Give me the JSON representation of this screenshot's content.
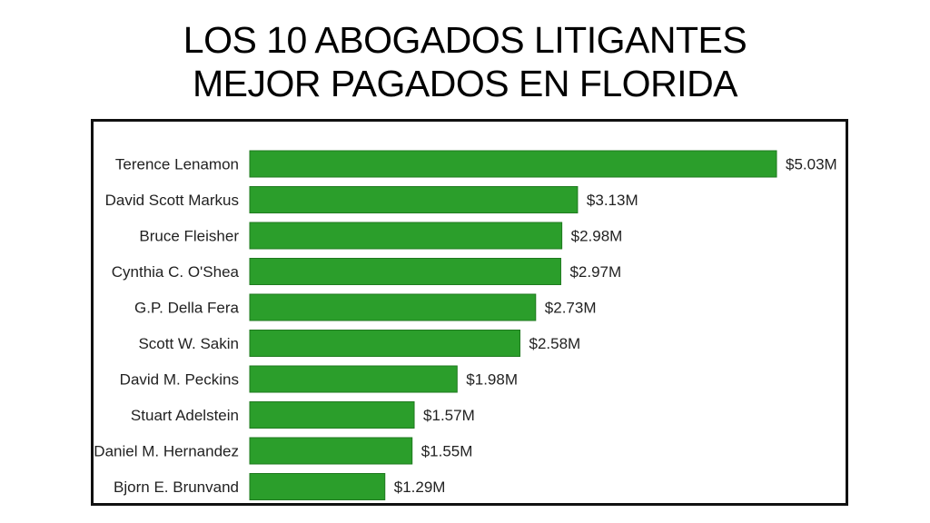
{
  "header": {
    "title_line1": "LOS 10 ABOGADOS LITIGANTES",
    "title_line2": "MEJOR PAGADOS EN FLORIDA"
  },
  "chart_data": {
    "type": "bar",
    "orientation": "horizontal",
    "categories": [
      "Terence Lenamon",
      "David Scott Markus",
      "Bruce Fleisher",
      "Cynthia C. O'Shea",
      "G.P. Della Fera",
      "Scott W. Sakin",
      "David M. Peckins",
      "Stuart Adelstein",
      "Daniel M. Hernandez",
      "Bjorn E. Brunvand"
    ],
    "values": [
      5.03,
      3.13,
      2.98,
      2.97,
      2.73,
      2.58,
      1.98,
      1.57,
      1.55,
      1.29
    ],
    "value_labels": [
      "$5.03M",
      "$3.13M",
      "$2.98M",
      "$2.97M",
      "$2.73M",
      "$2.58M",
      "$1.98M",
      "$1.57M",
      "$1.55M",
      "$1.29M"
    ],
    "unit": "$M",
    "xlim": [
      0,
      5.03
    ],
    "grid": false,
    "legend": "none",
    "bar_color": "#2b9e2b",
    "bar_border_color": "#1f7a1f"
  }
}
